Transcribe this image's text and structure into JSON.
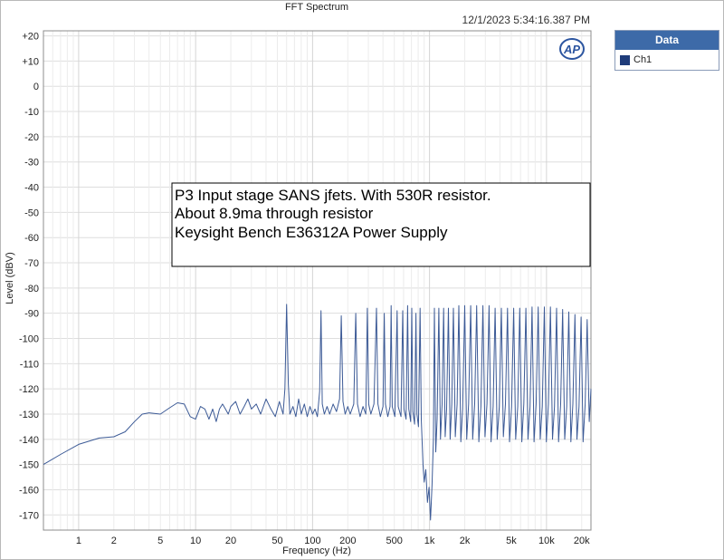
{
  "header": {
    "title": "FFT Spectrum",
    "timestamp": "12/1/2023 5:34:16.387 PM"
  },
  "logo": {
    "text": "AP"
  },
  "legend": {
    "title": "Data",
    "items": [
      {
        "label": "Ch1",
        "color": "#1f3c7a"
      }
    ]
  },
  "annotation": {
    "lines": [
      "P3 Input stage SANS jfets. With 530R resistor.",
      "About 8.9ma through resistor",
      "Keysight Bench E36312A Power Supply"
    ]
  },
  "chart_data": {
    "type": "line",
    "title": "FFT Spectrum",
    "xlabel": "Frequency (Hz)",
    "ylabel": "Level (dBV)",
    "xscale": "log",
    "xlim": [
      0.5,
      24000
    ],
    "ylim": [
      -176,
      22
    ],
    "grid": true,
    "x_ticks": [
      {
        "value": 1,
        "label": "1"
      },
      {
        "value": 2,
        "label": "2"
      },
      {
        "value": 5,
        "label": "5"
      },
      {
        "value": 10,
        "label": "10"
      },
      {
        "value": 20,
        "label": "20"
      },
      {
        "value": 50,
        "label": "50"
      },
      {
        "value": 100,
        "label": "100"
      },
      {
        "value": 200,
        "label": "200"
      },
      {
        "value": 500,
        "label": "500"
      },
      {
        "value": 1000,
        "label": "1k"
      },
      {
        "value": 2000,
        "label": "2k"
      },
      {
        "value": 5000,
        "label": "5k"
      },
      {
        "value": 10000,
        "label": "10k"
      },
      {
        "value": 20000,
        "label": "20k"
      }
    ],
    "y_ticks": [
      {
        "value": 20,
        "label": "+20"
      },
      {
        "value": 10,
        "label": "+10"
      },
      {
        "value": 0,
        "label": "0"
      },
      {
        "value": -10,
        "label": "-10"
      },
      {
        "value": -20,
        "label": "-20"
      },
      {
        "value": -30,
        "label": "-30"
      },
      {
        "value": -40,
        "label": "-40"
      },
      {
        "value": -50,
        "label": "-50"
      },
      {
        "value": -60,
        "label": "-60"
      },
      {
        "value": -70,
        "label": "-70"
      },
      {
        "value": -80,
        "label": "-80"
      },
      {
        "value": -90,
        "label": "-90"
      },
      {
        "value": -100,
        "label": "-100"
      },
      {
        "value": -110,
        "label": "-110"
      },
      {
        "value": -120,
        "label": "-120"
      },
      {
        "value": -130,
        "label": "-130"
      },
      {
        "value": -140,
        "label": "-140"
      },
      {
        "value": -150,
        "label": "-150"
      },
      {
        "value": -160,
        "label": "-160"
      },
      {
        "value": -170,
        "label": "-170"
      }
    ],
    "series": [
      {
        "name": "Ch1",
        "color": "#3c5a96",
        "points": [
          [
            0.5,
            -150
          ],
          [
            0.7,
            -146
          ],
          [
            1,
            -142
          ],
          [
            1.5,
            -139.5
          ],
          [
            2,
            -139
          ],
          [
            2.5,
            -137
          ],
          [
            3,
            -133
          ],
          [
            3.5,
            -130
          ],
          [
            4,
            -129.5
          ],
          [
            5,
            -130
          ],
          [
            6,
            -127.5
          ],
          [
            7,
            -125.5
          ],
          [
            8,
            -126
          ],
          [
            9,
            -131
          ],
          [
            10,
            -132
          ],
          [
            11,
            -127
          ],
          [
            12,
            -128
          ],
          [
            13,
            -132
          ],
          [
            14,
            -128
          ],
          [
            15,
            -133
          ],
          [
            16,
            -128
          ],
          [
            17,
            -126
          ],
          [
            18,
            -128
          ],
          [
            19,
            -130
          ],
          [
            20,
            -127
          ],
          [
            22,
            -125
          ],
          [
            24,
            -130
          ],
          [
            26,
            -127
          ],
          [
            28,
            -124
          ],
          [
            30,
            -128
          ],
          [
            33,
            -126
          ],
          [
            36,
            -130
          ],
          [
            40,
            -124
          ],
          [
            44,
            -128
          ],
          [
            48,
            -131
          ],
          [
            52,
            -125
          ],
          [
            56,
            -130
          ],
          [
            58,
            -120
          ],
          [
            60,
            -86.5
          ],
          [
            62,
            -118
          ],
          [
            64,
            -130
          ],
          [
            68,
            -127
          ],
          [
            72,
            -131
          ],
          [
            76,
            -124
          ],
          [
            80,
            -130
          ],
          [
            85,
            -126
          ],
          [
            90,
            -131
          ],
          [
            95,
            -127
          ],
          [
            100,
            -130
          ],
          [
            105,
            -128
          ],
          [
            110,
            -131
          ],
          [
            115,
            -121
          ],
          [
            118,
            -89
          ],
          [
            121,
            -126
          ],
          [
            126,
            -130
          ],
          [
            133,
            -127
          ],
          [
            140,
            -130
          ],
          [
            150,
            -126
          ],
          [
            160,
            -129
          ],
          [
            170,
            -124
          ],
          [
            176,
            -91
          ],
          [
            182,
            -125
          ],
          [
            190,
            -130
          ],
          [
            200,
            -127
          ],
          [
            210,
            -130
          ],
          [
            225,
            -126
          ],
          [
            234,
            -90
          ],
          [
            242,
            -126
          ],
          [
            255,
            -131
          ],
          [
            270,
            -127
          ],
          [
            285,
            -130
          ],
          [
            294,
            -88
          ],
          [
            302,
            -126
          ],
          [
            315,
            -130
          ],
          [
            335,
            -126
          ],
          [
            352,
            -88
          ],
          [
            362,
            -126
          ],
          [
            380,
            -131
          ],
          [
            400,
            -127
          ],
          [
            410,
            -90
          ],
          [
            420,
            -126
          ],
          [
            440,
            -131
          ],
          [
            460,
            -127
          ],
          [
            470,
            -87
          ],
          [
            480,
            -127
          ],
          [
            505,
            -131
          ],
          [
            528,
            -89
          ],
          [
            540,
            -127
          ],
          [
            570,
            -131
          ],
          [
            590,
            -89
          ],
          [
            605,
            -128
          ],
          [
            630,
            -132
          ],
          [
            650,
            -87
          ],
          [
            665,
            -128
          ],
          [
            690,
            -133
          ],
          [
            705,
            -88
          ],
          [
            720,
            -129
          ],
          [
            745,
            -134
          ],
          [
            765,
            -90
          ],
          [
            780,
            -130
          ],
          [
            805,
            -135
          ],
          [
            830,
            -88
          ],
          [
            850,
            -132
          ],
          [
            880,
            -150
          ],
          [
            900,
            -157
          ],
          [
            930,
            -152
          ],
          [
            960,
            -165
          ],
          [
            990,
            -159
          ],
          [
            1020,
            -172
          ],
          [
            1050,
            -158
          ],
          [
            1080,
            -140
          ],
          [
            1100,
            -88
          ],
          [
            1130,
            -145
          ],
          [
            1160,
            -132
          ],
          [
            1200,
            -88
          ],
          [
            1240,
            -140
          ],
          [
            1280,
            -126
          ],
          [
            1320,
            -88
          ],
          [
            1360,
            -139
          ],
          [
            1400,
            -128
          ],
          [
            1450,
            -88
          ],
          [
            1500,
            -140
          ],
          [
            1550,
            -126
          ],
          [
            1600,
            -88
          ],
          [
            1660,
            -139
          ],
          [
            1720,
            -126
          ],
          [
            1780,
            -87
          ],
          [
            1850,
            -141
          ],
          [
            1920,
            -128
          ],
          [
            2000,
            -87
          ],
          [
            2080,
            -140
          ],
          [
            2160,
            -126
          ],
          [
            2250,
            -87
          ],
          [
            2340,
            -140
          ],
          [
            2430,
            -126
          ],
          [
            2530,
            -87
          ],
          [
            2640,
            -141
          ],
          [
            2750,
            -127
          ],
          [
            2860,
            -87
          ],
          [
            2980,
            -139
          ],
          [
            3100,
            -126
          ],
          [
            3230,
            -87
          ],
          [
            3360,
            -141
          ],
          [
            3500,
            -127
          ],
          [
            3640,
            -88
          ],
          [
            3790,
            -140
          ],
          [
            3950,
            -127
          ],
          [
            4110,
            -88
          ],
          [
            4280,
            -139
          ],
          [
            4460,
            -126
          ],
          [
            4640,
            -88
          ],
          [
            4830,
            -141
          ],
          [
            5030,
            -127
          ],
          [
            5240,
            -88
          ],
          [
            5450,
            -140
          ],
          [
            5680,
            -127
          ],
          [
            5910,
            -88
          ],
          [
            6150,
            -141
          ],
          [
            6400,
            -126
          ],
          [
            6670,
            -88
          ],
          [
            6940,
            -140
          ],
          [
            7230,
            -127
          ],
          [
            7520,
            -87.5
          ],
          [
            7830,
            -141
          ],
          [
            8150,
            -126
          ],
          [
            8490,
            -87.5
          ],
          [
            8840,
            -140
          ],
          [
            9200,
            -127
          ],
          [
            9580,
            -87.5
          ],
          [
            9970,
            -141
          ],
          [
            10380,
            -126
          ],
          [
            10800,
            -87.5
          ],
          [
            11250,
            -140
          ],
          [
            11710,
            -127
          ],
          [
            12190,
            -88
          ],
          [
            12690,
            -141
          ],
          [
            13210,
            -126
          ],
          [
            13750,
            -88.5
          ],
          [
            14320,
            -140
          ],
          [
            14900,
            -127
          ],
          [
            15520,
            -89.5
          ],
          [
            16150,
            -141
          ],
          [
            16810,
            -126
          ],
          [
            17500,
            -90.5
          ],
          [
            18220,
            -140
          ],
          [
            18970,
            -127
          ],
          [
            19750,
            -91.5
          ],
          [
            20560,
            -141
          ],
          [
            21400,
            -126
          ],
          [
            22280,
            -92.5
          ],
          [
            23200,
            -133
          ],
          [
            24000,
            -120
          ]
        ]
      }
    ]
  }
}
